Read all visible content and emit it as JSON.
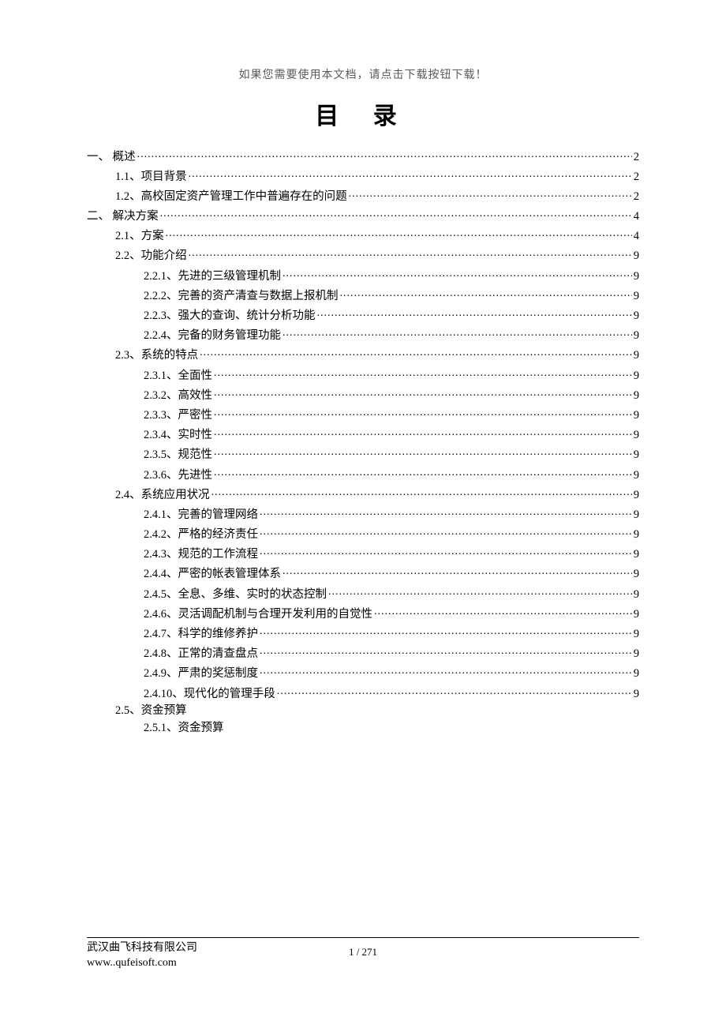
{
  "header_note": "如果您需要使用本文档，请点击下载按钮下载！",
  "title": "目 录",
  "toc": [
    {
      "level": 0,
      "label": "一、 概述",
      "page": "2"
    },
    {
      "level": 1,
      "label": "1.1、项目背景",
      "page": "2"
    },
    {
      "level": 1,
      "label": "1.2、高校固定资产管理工作中普遍存在的问题",
      "page": "2"
    },
    {
      "level": 0,
      "label": "二、 解决方案",
      "page": "4"
    },
    {
      "level": 1,
      "label": "2.1、方案",
      "page": "4"
    },
    {
      "level": 1,
      "label": "2.2、功能介绍",
      "page": "9"
    },
    {
      "level": 2,
      "label": "2.2.1、先进的三级管理机制",
      "page": "9"
    },
    {
      "level": 2,
      "label": "2.2.2、完善的资产清查与数据上报机制",
      "page": "9"
    },
    {
      "level": 2,
      "label": "2.2.3、强大的查询、统计分析功能",
      "page": "9"
    },
    {
      "level": 2,
      "label": "2.2.4、完备的财务管理功能",
      "page": "9"
    },
    {
      "level": 1,
      "label": "2.3、系统的特点",
      "page": "9"
    },
    {
      "level": 2,
      "label": "2.3.1、全面性",
      "page": "9"
    },
    {
      "level": 2,
      "label": "2.3.2、高效性",
      "page": "9"
    },
    {
      "level": 2,
      "label": "2.3.3、严密性",
      "page": "9"
    },
    {
      "level": 2,
      "label": "2.3.4、实时性",
      "page": "9"
    },
    {
      "level": 2,
      "label": "2.3.5、规范性",
      "page": "9"
    },
    {
      "level": 2,
      "label": "2.3.6、先进性",
      "page": "9"
    },
    {
      "level": 1,
      "label": "2.4、系统应用状况",
      "page": "9"
    },
    {
      "level": 2,
      "label": "2.4.1、完善的管理网络",
      "page": "9"
    },
    {
      "level": 2,
      "label": "2.4.2、严格的经济责任",
      "page": "9"
    },
    {
      "level": 2,
      "label": "2.4.3、规范的工作流程",
      "page": "9"
    },
    {
      "level": 2,
      "label": "2.4.4、严密的帐表管理体系",
      "page": "9"
    },
    {
      "level": 2,
      "label": "2.4.5、全息、多维、实时的状态控制",
      "page": "9"
    },
    {
      "level": 2,
      "label": "2.4.6、灵活调配机制与合理开发利用的自觉性",
      "page": "9"
    },
    {
      "level": 2,
      "label": "2.4.7、科学的维修养护",
      "page": "9"
    },
    {
      "level": 2,
      "label": "2.4.8、正常的清查盘点",
      "page": "9"
    },
    {
      "level": 2,
      "label": "2.4.9、严肃的奖惩制度",
      "page": "9"
    },
    {
      "level": 2,
      "label": "2.4.10、现代化的管理手段",
      "page": "9"
    },
    {
      "level": 1,
      "label": "2.5、资金预算",
      "page": ""
    },
    {
      "level": 2,
      "label": "2.5.1、资金预算",
      "page": ""
    }
  ],
  "footer": {
    "company": "武汉曲飞科技有限公司",
    "website": "www..qufeisoft.com",
    "page_indicator": "1 / 271"
  },
  "colors": {
    "text": "#000000",
    "header_note": "#5a5a5a",
    "background": "#ffffff",
    "rule": "#000000"
  }
}
